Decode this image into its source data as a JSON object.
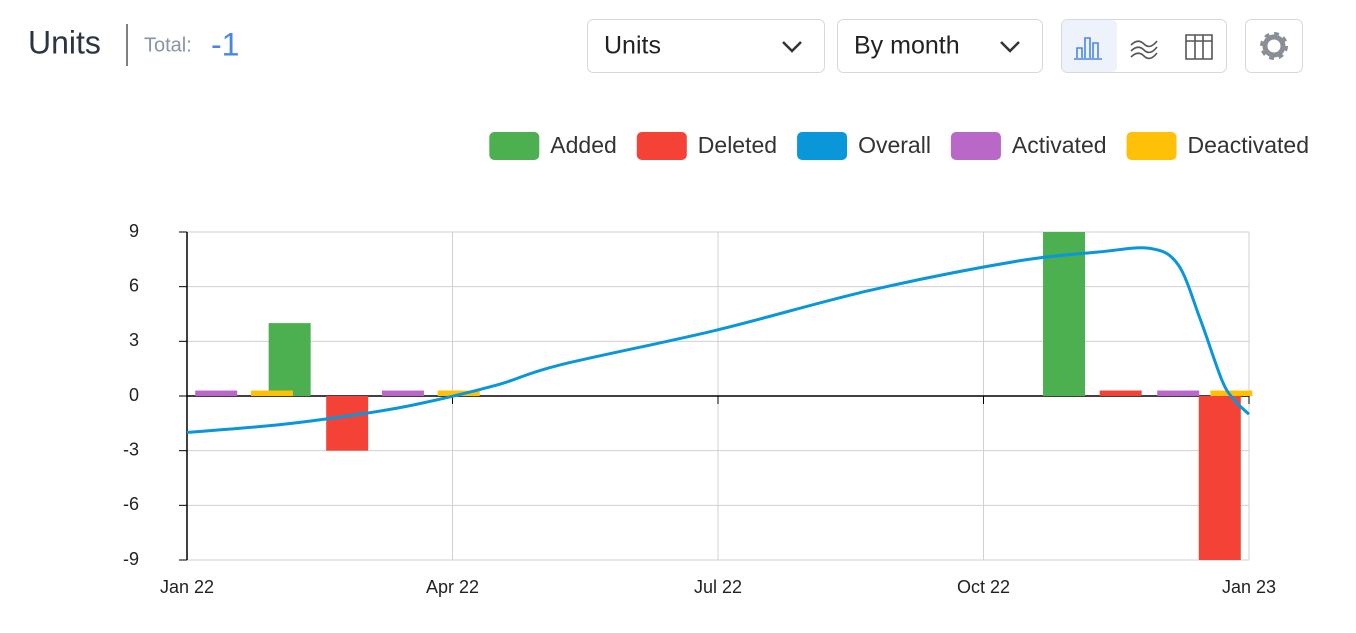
{
  "header": {
    "title": "Units",
    "total_label": "Total:",
    "total_value": -1
  },
  "controls": {
    "metric": "Units",
    "period": "By month"
  },
  "chart_data": {
    "type": "bar",
    "xlim": [
      0,
      12
    ],
    "xticks": [
      {
        "value": 0,
        "label": "Jan 22"
      },
      {
        "value": 3,
        "label": "Apr 22"
      },
      {
        "value": 6,
        "label": "Jul 22"
      },
      {
        "value": 9,
        "label": "Oct 22"
      },
      {
        "value": 12,
        "label": "Jan 23"
      }
    ],
    "ylim": [
      -9,
      9
    ],
    "yticks": [
      9,
      6,
      3,
      0,
      -3,
      -6,
      -9
    ],
    "grid": true,
    "legend": "top-right",
    "series": [
      {
        "name": "Added",
        "color": "#4caf50",
        "x": [
          1.16,
          9.91
        ],
        "values": [
          4,
          9
        ]
      },
      {
        "name": "Deleted",
        "color": "#f44336",
        "x": [
          1.81,
          10.55,
          11.67
        ],
        "values": [
          -3,
          0.3,
          -9
        ]
      },
      {
        "name": "Overall",
        "color": "#0a97d9",
        "type": "line",
        "x": [
          0,
          1,
          1.81,
          2.55,
          3.5,
          4.21,
          5.97,
          7.72,
          9.38,
          10.3,
          10.88,
          11.2,
          11.45,
          11.7,
          11.85,
          12
        ],
        "values": [
          -2,
          -1.6,
          -1.1,
          -0.5,
          0.6,
          1.7,
          3.6,
          5.8,
          7.4,
          7.9,
          8.1,
          7.2,
          4.2,
          0.8,
          -0.3,
          -1
        ]
      },
      {
        "name": "Activated",
        "color": "#ba68c8",
        "x": [
          0.33,
          2.44,
          11.2
        ],
        "values": [
          0.3,
          0.3,
          0.3
        ]
      },
      {
        "name": "Deactivated",
        "color": "#ffc107",
        "x": [
          0.96,
          3.07,
          11.8
        ],
        "values": [
          0.3,
          0.3,
          0.3
        ]
      }
    ]
  }
}
